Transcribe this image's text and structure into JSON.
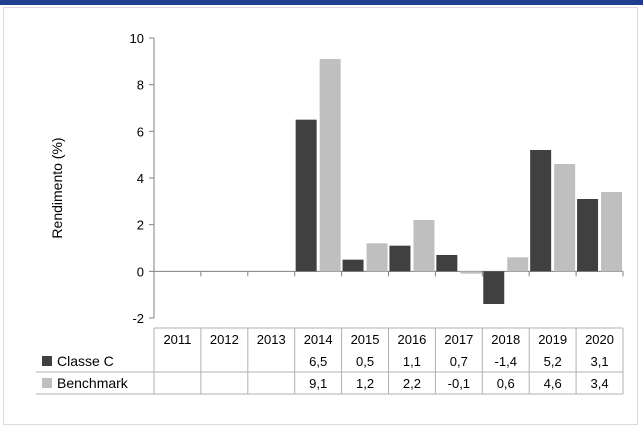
{
  "chart_data": {
    "type": "bar",
    "categories": [
      "2011",
      "2012",
      "2013",
      "2014",
      "2015",
      "2016",
      "2017",
      "2018",
      "2019",
      "2020"
    ],
    "series": [
      {
        "name": "Classe C",
        "color": "#404040",
        "values": [
          null,
          null,
          null,
          6.5,
          0.5,
          1.1,
          0.7,
          -1.4,
          5.2,
          3.1
        ],
        "labels": [
          "",
          "",
          "",
          "6,5",
          "0,5",
          "1,1",
          "0,7",
          "-1,4",
          "5,2",
          "3,1"
        ]
      },
      {
        "name": "Benchmark",
        "color": "#bfbfbf",
        "values": [
          null,
          null,
          null,
          9.1,
          1.2,
          2.2,
          -0.1,
          0.6,
          4.6,
          3.4
        ],
        "labels": [
          "",
          "",
          "",
          "9,1",
          "1,2",
          "2,2",
          "-0,1",
          "0,6",
          "4,6",
          "3,4"
        ]
      }
    ],
    "ylabel": "Rendimento (%)",
    "ylim": [
      -2,
      10
    ],
    "yticks": [
      "-2",
      "0",
      "2",
      "4",
      "6",
      "8",
      "10"
    ],
    "data_table": true,
    "grid": false
  }
}
